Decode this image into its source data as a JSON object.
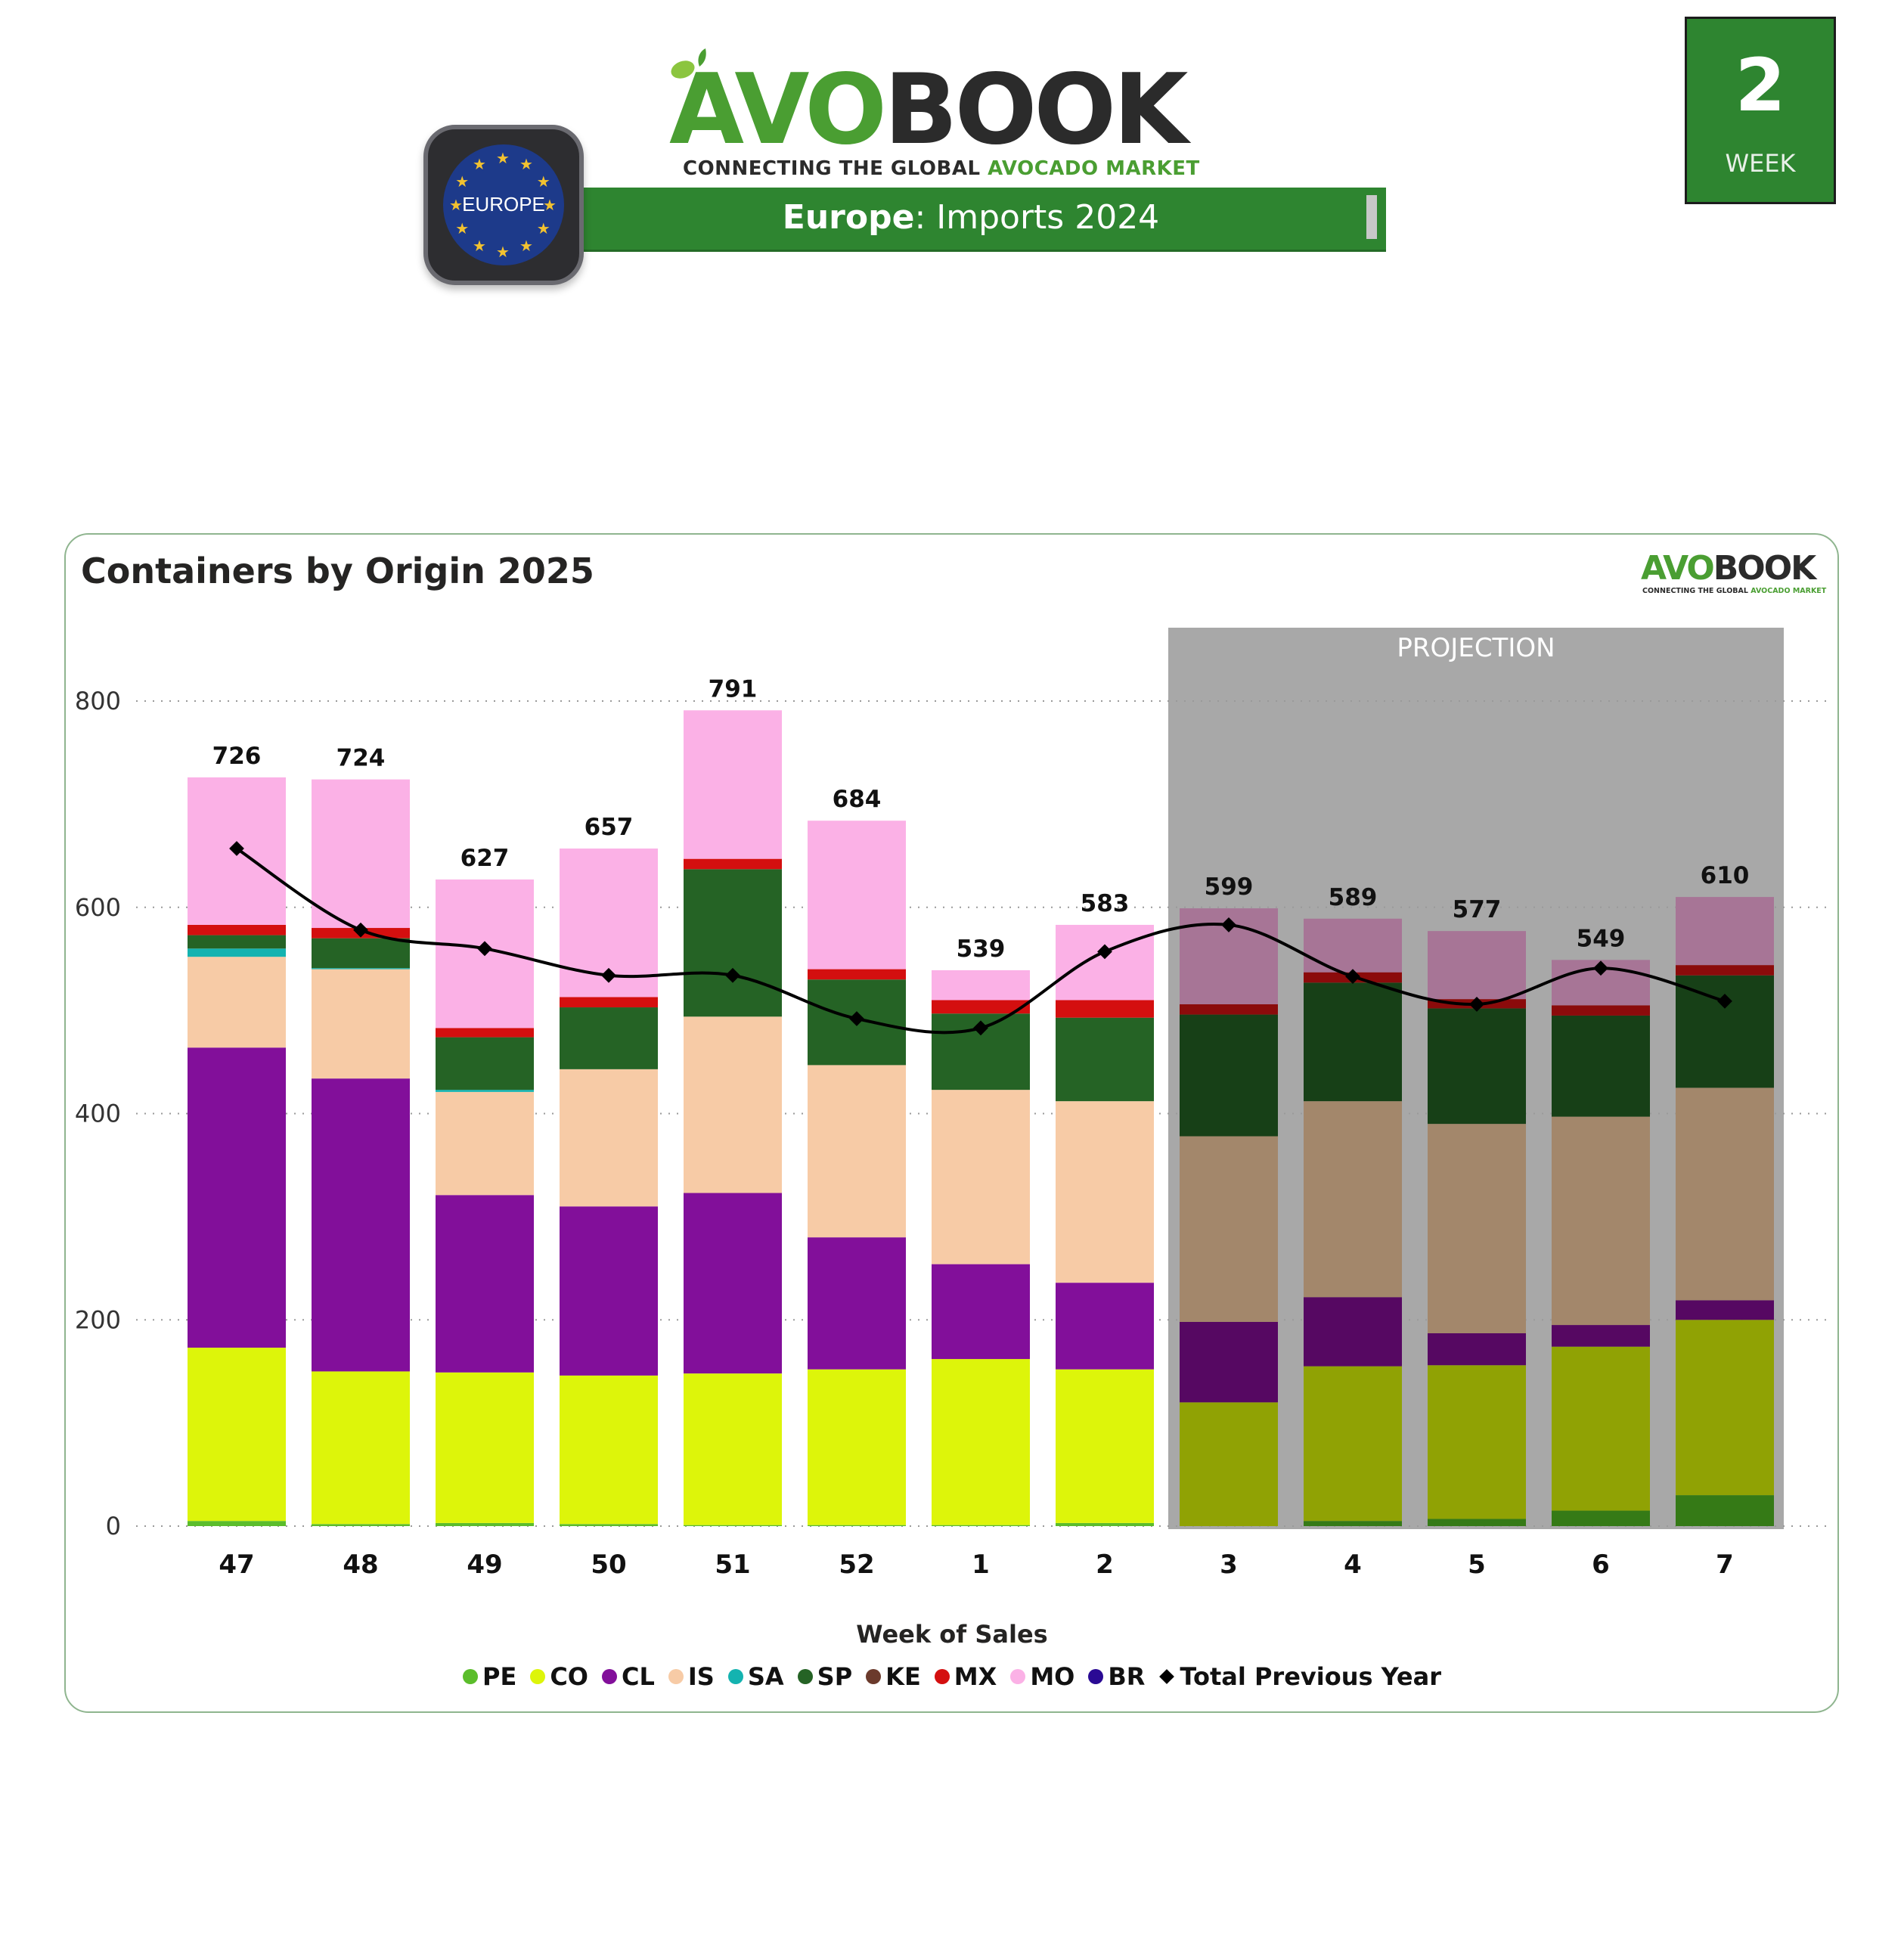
{
  "header": {
    "logo": {
      "word_avo": "AVO",
      "word_book": "BOOK",
      "tag_dark": "CONNECTING THE GLOBAL ",
      "tag_green": "AVOCADO MARKET"
    },
    "banner": {
      "region": "Europe",
      "rest": ": Imports 2024"
    },
    "badge": {
      "label": "EUROPE"
    },
    "week": {
      "number": "2",
      "label": "WEEK"
    }
  },
  "colors": {
    "brand_green": "#2e8530",
    "projection_bg": "#a8a8a8"
  },
  "chart_data": {
    "type": "bar",
    "stacked": true,
    "title": "Containers by Origin 2025",
    "xlabel": "Week of Sales",
    "ylabel": "",
    "ylim": [
      0,
      860
    ],
    "yticks": [
      0,
      200,
      400,
      600,
      800
    ],
    "grid": true,
    "legend_position": "bottom",
    "categories": [
      "47",
      "48",
      "49",
      "50",
      "51",
      "52",
      "1",
      "2",
      "3",
      "4",
      "5",
      "6",
      "7"
    ],
    "projection": {
      "label": "PROJECTION",
      "from_index": 8,
      "to_index": 12
    },
    "totals": [
      726,
      724,
      627,
      657,
      791,
      684,
      539,
      583,
      599,
      589,
      577,
      549,
      610
    ],
    "series": [
      {
        "name": "PE",
        "color": "#5bbd2b",
        "proj_color": "#357a16",
        "values": [
          5,
          2,
          3,
          2,
          1,
          1,
          1,
          3,
          0,
          5,
          7,
          15,
          30
        ]
      },
      {
        "name": "CO",
        "color": "#ddf50a",
        "proj_color": "#90a204",
        "values": [
          168,
          148,
          146,
          144,
          147,
          151,
          161,
          149,
          120,
          150,
          149,
          159,
          170
        ]
      },
      {
        "name": "CL",
        "color": "#820f9a",
        "proj_color": "#560862",
        "values": [
          291,
          284,
          172,
          164,
          175,
          128,
          92,
          84,
          78,
          67,
          31,
          21,
          19
        ]
      },
      {
        "name": "IS",
        "color": "#f7cba6",
        "proj_color": "#a3876b",
        "values": [
          88,
          106,
          100,
          133,
          171,
          167,
          169,
          176,
          180,
          190,
          203,
          202,
          206
        ]
      },
      {
        "name": "SA",
        "color": "#14b3b0",
        "proj_color": "#0c706e",
        "values": [
          8,
          1,
          2,
          0,
          0,
          0,
          0,
          0,
          0,
          0,
          0,
          0,
          0
        ]
      },
      {
        "name": "SP",
        "color": "#256325",
        "proj_color": "#174017",
        "values": [
          13,
          29,
          51,
          60,
          143,
          83,
          74,
          81,
          118,
          115,
          112,
          98,
          109
        ]
      },
      {
        "name": "KE",
        "color": "#6b3a2c",
        "proj_color": "#47261c",
        "values": [
          0,
          0,
          0,
          0,
          0,
          0,
          0,
          0,
          0,
          0,
          0,
          0,
          0
        ]
      },
      {
        "name": "MX",
        "color": "#d40f0f",
        "proj_color": "#8b0b0b",
        "values": [
          10,
          10,
          9,
          10,
          10,
          10,
          13,
          17,
          10,
          10,
          9,
          10,
          10
        ]
      },
      {
        "name": "MO",
        "color": "#fbb1e6",
        "proj_color": "#a77596",
        "values": [
          143,
          144,
          144,
          144,
          144,
          144,
          29,
          73,
          93,
          52,
          66,
          44,
          66
        ]
      },
      {
        "name": "BR",
        "color": "#2a0a94",
        "proj_color": "#1a0660",
        "values": [
          0,
          0,
          0,
          0,
          0,
          0,
          0,
          0,
          0,
          0,
          0,
          0,
          0
        ]
      }
    ],
    "line": {
      "name": "Total Previous Year",
      "color": "#000000",
      "marker": "diamond",
      "values": [
        657,
        578,
        560,
        534,
        534,
        492,
        483,
        557,
        583,
        533,
        506,
        541,
        509
      ]
    }
  }
}
